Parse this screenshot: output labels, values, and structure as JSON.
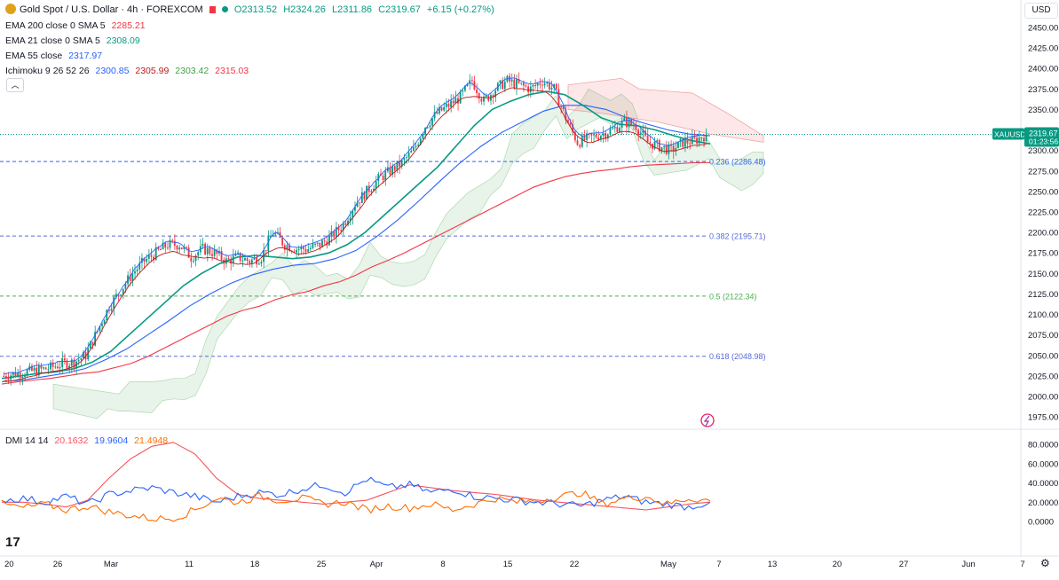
{
  "header": {
    "symbol_title": "Gold Spot / U.S. Dollar · 4h · FOREXCOM",
    "open": "O2313.52",
    "high": "H2324.26",
    "low": "L2311.86",
    "close": "C2319.67",
    "change": "+6.15 (+0.27%)"
  },
  "indicators": [
    {
      "label": "EMA 200 close 0 SMA 5",
      "values": [
        "2285.21"
      ],
      "colors": [
        "#f23645"
      ]
    },
    {
      "label": "EMA 21 close 0 SMA 5",
      "values": [
        "2308.09"
      ],
      "colors": [
        "#089981"
      ]
    },
    {
      "label": "EMA 55 close",
      "values": [
        "2317.97"
      ],
      "colors": [
        "#2962ff"
      ]
    },
    {
      "label": "Ichimoku 9 26 52 26",
      "values": [
        "2300.85",
        "2305.99",
        "2303.42",
        "2315.03"
      ],
      "colors": [
        "#2962ff",
        "#b71c1c",
        "#43a047",
        "#f23645"
      ]
    }
  ],
  "dmi": {
    "label": "DMI 14 14",
    "values": [
      "20.1632",
      "19.9604",
      "21.4948"
    ],
    "colors": [
      "#f7525f",
      "#2962ff",
      "#ff6d00"
    ]
  },
  "currency": "USD",
  "symbol_tag": "XAUUSD",
  "price_tag": "2319.67",
  "countdown": "01:23:56",
  "colors": {
    "up": "#089981",
    "down": "#f23645",
    "ema200": "#f23645",
    "ema21": "#089981",
    "ema55": "#2962ff",
    "tenkan": "#2962ff",
    "kijun": "#b71c1c",
    "cloud_green": "#43a047",
    "cloud_red": "#f23645",
    "fib": "#5b6ad9",
    "fib_half": "#4caf50"
  },
  "chart_data": {
    "type": "candlestick",
    "title": "Gold Spot / U.S. Dollar · 4h · FOREXCOM",
    "y_axis": {
      "ticks": [
        1975,
        2000,
        2025,
        2050,
        2075,
        2100,
        2125,
        2150,
        2175,
        2200,
        2225,
        2250,
        2275,
        2300,
        2325,
        2350,
        2375,
        2400,
        2425,
        2450
      ],
      "tick_labels": [
        "1975.00",
        "2000.00",
        "2025.00",
        "2050.00",
        "2075.00",
        "2100.00",
        "2125.00",
        "2150.00",
        "2175.00",
        "2200.00",
        "2225.00",
        "2250.00",
        "2275.00",
        "2300.00",
        "2325.00",
        "2350.00",
        "2375.00",
        "2400.00",
        "2425.00",
        "2450.00"
      ],
      "range": [
        1967,
        2460
      ]
    },
    "x_axis": {
      "labels": [
        "20",
        "26",
        "Mar",
        "11",
        "18",
        "25",
        "Apr",
        "8",
        "15",
        "22",
        "May",
        "7",
        "13",
        "20",
        "27",
        "Jun",
        "7"
      ]
    },
    "fibonacci": [
      {
        "label": "0.236 (2286.48)",
        "value": 2286.48
      },
      {
        "label": "0.382 (2195.71)",
        "value": 2195.71
      },
      {
        "label": "0.5 (2122.34)",
        "value": 2122.34
      },
      {
        "label": "0.618 (2048.98)",
        "value": 2048.98
      }
    ],
    "last_price": 2319.67,
    "close_path": [
      2025,
      2028,
      2030,
      2032,
      2035,
      2040,
      2042,
      2050,
      2080,
      2110,
      2130,
      2150,
      2165,
      2175,
      2185,
      2185,
      2170,
      2180,
      2175,
      2165,
      2170,
      2165,
      2170,
      2200,
      2185,
      2180,
      2180,
      2185,
      2195,
      2210,
      2235,
      2250,
      2265,
      2275,
      2285,
      2300,
      2330,
      2345,
      2355,
      2365,
      2385,
      2360,
      2375,
      2385,
      2380,
      2375,
      2385,
      2375,
      2340,
      2310,
      2315,
      2320,
      2325,
      2335,
      2330,
      2310,
      2305,
      2300,
      2310,
      2312,
      2319.67
    ],
    "series": [
      {
        "name": "EMA 200",
        "values": [
          2015,
          2018,
          2020,
          2022,
          2025,
          2028,
          2030,
          2035,
          2040,
          2048,
          2058,
          2068,
          2078,
          2088,
          2098,
          2105,
          2110,
          2118,
          2124,
          2128,
          2135,
          2140,
          2148,
          2158,
          2166,
          2175,
          2185,
          2195,
          2205,
          2215,
          2225,
          2235,
          2245,
          2255,
          2262,
          2268,
          2272,
          2275,
          2277,
          2280,
          2282,
          2283,
          2284,
          2285,
          2285.21
        ]
      },
      {
        "name": "EMA 21",
        "values": [
          2022,
          2025,
          2028,
          2030,
          2034,
          2042,
          2055,
          2075,
          2095,
          2115,
          2135,
          2150,
          2162,
          2170,
          2172,
          2170,
          2168,
          2170,
          2175,
          2185,
          2200,
          2220,
          2240,
          2260,
          2280,
          2305,
          2330,
          2350,
          2360,
          2368,
          2372,
          2368,
          2355,
          2340,
          2332,
          2330,
          2325,
          2318,
          2312,
          2308.09
        ]
      },
      {
        "name": "EMA 55",
        "values": [
          2018,
          2020,
          2024,
          2028,
          2034,
          2045,
          2058,
          2075,
          2092,
          2110,
          2125,
          2138,
          2148,
          2155,
          2160,
          2162,
          2168,
          2178,
          2195,
          2215,
          2238,
          2262,
          2285,
          2305,
          2322,
          2335,
          2348,
          2355,
          2355,
          2350,
          2340,
          2332,
          2325,
          2320,
          2317.97
        ]
      }
    ],
    "dmi_panel": {
      "y_ticks": [
        0,
        20,
        40,
        60,
        80
      ],
      "y_tick_labels": [
        "0.0000",
        "20.0000",
        "40.0000",
        "60.0000",
        "80.0000"
      ],
      "series": [
        {
          "name": "ADX",
          "values": [
            20,
            20,
            18,
            15,
            22,
            45,
            65,
            78,
            82,
            70,
            45,
            28,
            24,
            22,
            20,
            18,
            20,
            22,
            30,
            38,
            35,
            32,
            30,
            28,
            25,
            22,
            20,
            18,
            16,
            14,
            12,
            15,
            18,
            20.16
          ]
        },
        {
          "name": "+DI",
          "values": [
            22,
            24,
            20,
            26,
            18,
            28,
            32,
            35,
            30,
            26,
            20,
            26,
            30,
            28,
            34,
            38,
            30,
            44,
            35,
            38,
            30,
            34,
            26,
            24,
            22,
            20,
            18,
            16,
            22,
            26,
            20,
            18,
            15,
            19.96
          ]
        },
        {
          "name": "-DI",
          "values": [
            18,
            14,
            18,
            12,
            16,
            10,
            6,
            3,
            3,
            12,
            24,
            20,
            26,
            22,
            24,
            18,
            20,
            12,
            16,
            14,
            18,
            12,
            18,
            24,
            20,
            22,
            26,
            30,
            18,
            24,
            26,
            18,
            24,
            21.49
          ]
        }
      ]
    }
  }
}
